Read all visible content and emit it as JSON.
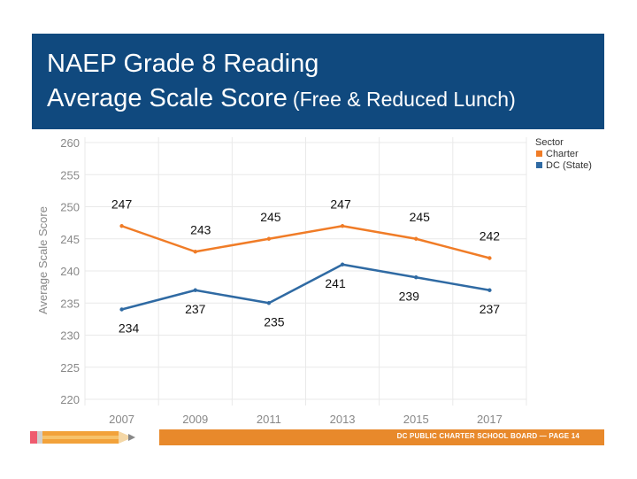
{
  "slide": {
    "title_line1": "NAEP Grade 8 Reading",
    "title_line2_main": "Average Scale Score",
    "title_line2_sub": "(Free & Reduced Lunch)",
    "footer": "DC PUBLIC CHARTER SCHOOL BOARD — PAGE 14",
    "colors": {
      "header_bg": "#10497e",
      "footer_bar": "#e8892b"
    }
  },
  "chart_data": {
    "type": "line",
    "title": "",
    "xlabel": "",
    "ylabel": "Average Scale Score",
    "x": [
      "2007",
      "2009",
      "2011",
      "2013",
      "2015",
      "2017"
    ],
    "ylim": [
      220,
      260
    ],
    "yticks": [
      220,
      225,
      230,
      235,
      240,
      245,
      250,
      255,
      260
    ],
    "grid": true,
    "legend": {
      "title": "Sector",
      "placement": "top-right"
    },
    "series": [
      {
        "name": "Charter",
        "color": "#f07c27",
        "values": [
          247,
          243,
          245,
          247,
          245,
          242
        ]
      },
      {
        "name": "DC (State)",
        "color": "#2f6aa3",
        "values": [
          234,
          237,
          235,
          241,
          239,
          237
        ]
      }
    ]
  }
}
